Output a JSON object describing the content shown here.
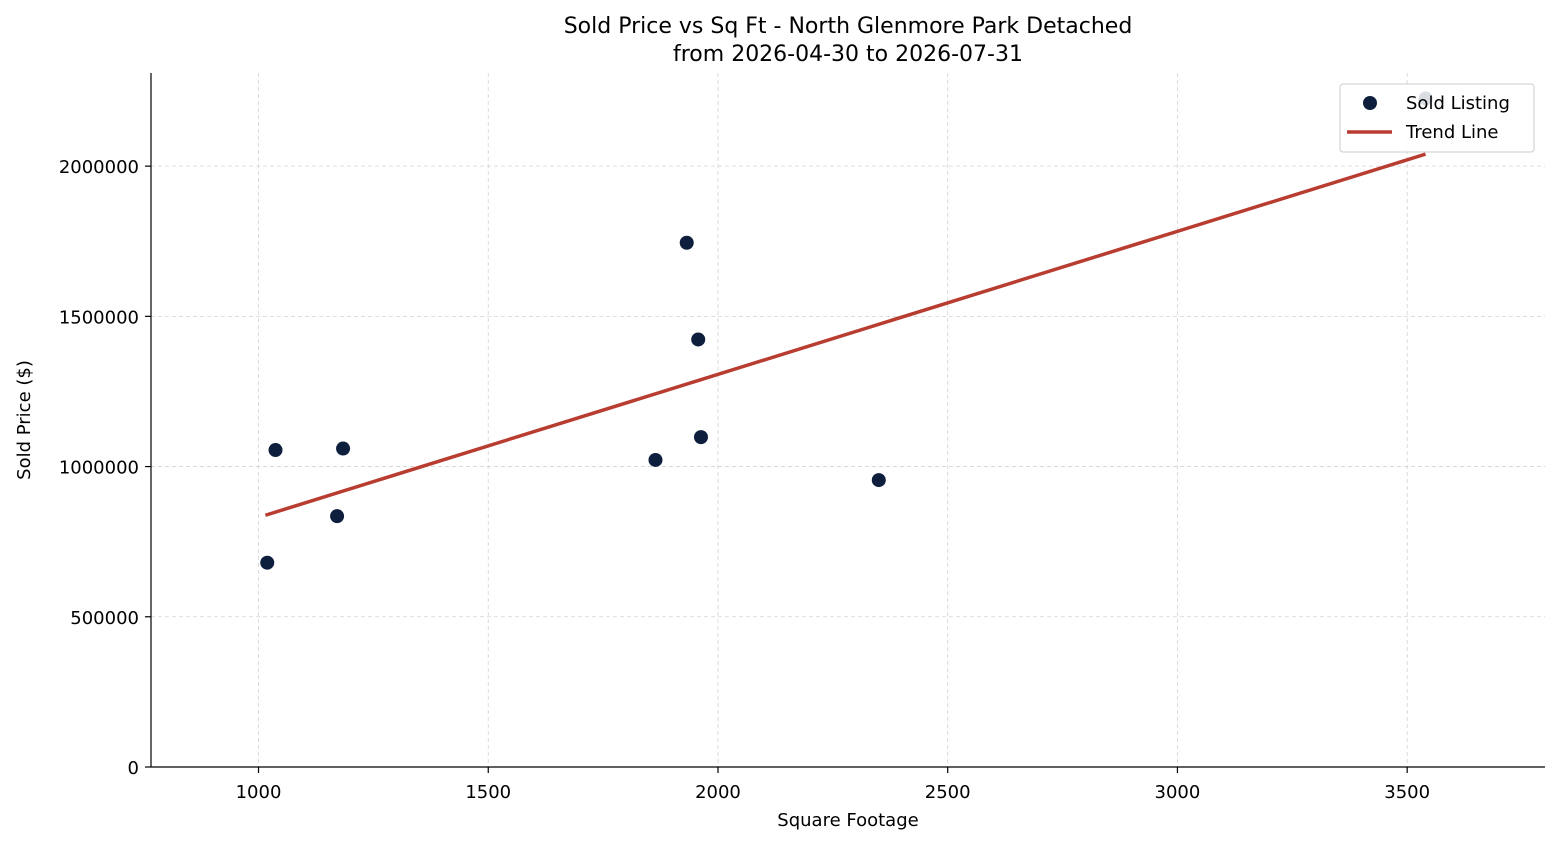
{
  "chart_data": {
    "type": "scatter",
    "title": "Sold Price vs Sq Ft - North Glenmore Park Detached",
    "subtitle": "from 2026-04-30 to 2026-07-31",
    "xlabel": "Square Footage",
    "ylabel": "Sold Price ($)",
    "xlim": [
      766,
      3800
    ],
    "ylim": [
      0,
      2310000
    ],
    "xticks": [
      1000,
      1500,
      2000,
      2500,
      3000,
      3500
    ],
    "yticks": [
      0,
      500000,
      1000000,
      1500000,
      2000000
    ],
    "xtick_labels": [
      "1000",
      "1500",
      "2000",
      "2500",
      "3000",
      "3500"
    ],
    "ytick_labels": [
      "0",
      "500000",
      "1000000",
      "1500000",
      "2000000"
    ],
    "grid": true,
    "legend_position": "top-right",
    "series": [
      {
        "name": "Sold Listing",
        "kind": "scatter",
        "color": "#0d1f3c",
        "points": [
          {
            "x": 1019,
            "y": 680000
          },
          {
            "x": 1037,
            "y": 1055000
          },
          {
            "x": 1171,
            "y": 835000
          },
          {
            "x": 1184,
            "y": 1060000
          },
          {
            "x": 1864,
            "y": 1022000
          },
          {
            "x": 1932,
            "y": 1745000
          },
          {
            "x": 1957,
            "y": 1423000
          },
          {
            "x": 1963,
            "y": 1098000
          },
          {
            "x": 2350,
            "y": 955000
          },
          {
            "x": 3540,
            "y": 2225000
          }
        ]
      },
      {
        "name": "Trend Line",
        "kind": "line",
        "color": "#b83c30",
        "points": [
          {
            "x": 1015,
            "y": 838000
          },
          {
            "x": 3540,
            "y": 2040000
          }
        ]
      }
    ]
  }
}
